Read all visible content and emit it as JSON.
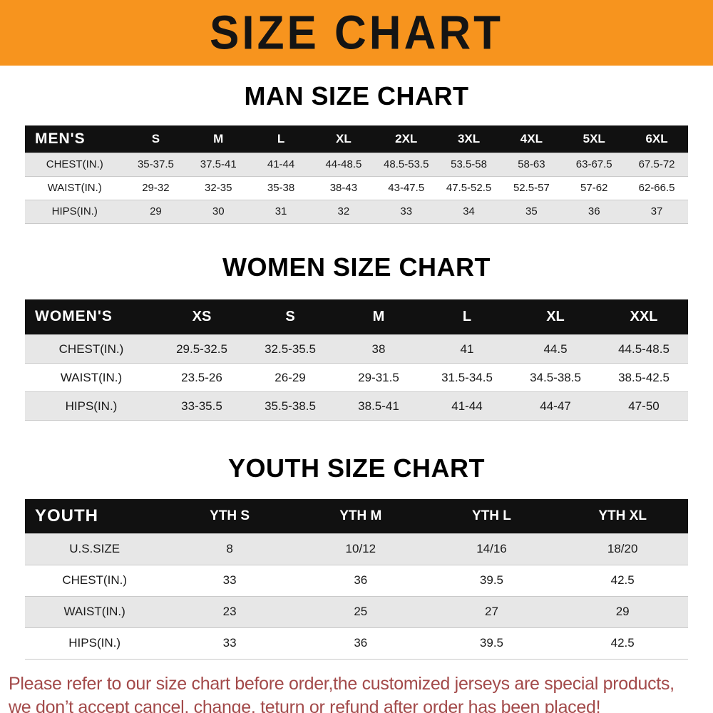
{
  "banner": {
    "title": "SIZE CHART",
    "bg_color": "#f7941e"
  },
  "sections": [
    {
      "heading": "MAN SIZE CHART",
      "table": {
        "header": [
          "MEN'S",
          "S",
          "M",
          "L",
          "XL",
          "2XL",
          "3XL",
          "4XL",
          "5XL",
          "6XL"
        ],
        "rows": [
          [
            "CHEST(IN.)",
            "35-37.5",
            "37.5-41",
            "41-44",
            "44-48.5",
            "48.5-53.5",
            "53.5-58",
            "58-63",
            "63-67.5",
            "67.5-72"
          ],
          [
            "WAIST(IN.)",
            "29-32",
            "32-35",
            "35-38",
            "38-43",
            "43-47.5",
            "47.5-52.5",
            "52.5-57",
            "57-62",
            "62-66.5"
          ],
          [
            "HIPS(IN.)",
            "29",
            "30",
            "31",
            "32",
            "33",
            "34",
            "35",
            "36",
            "37"
          ]
        ]
      }
    },
    {
      "heading": "WOMEN SIZE CHART",
      "table": {
        "header": [
          "WOMEN'S",
          "XS",
          "S",
          "M",
          "L",
          "XL",
          "XXL"
        ],
        "rows": [
          [
            "CHEST(IN.)",
            "29.5-32.5",
            "32.5-35.5",
            "38",
            "41",
            "44.5",
            "44.5-48.5"
          ],
          [
            "WAIST(IN.)",
            "23.5-26",
            "26-29",
            "29-31.5",
            "31.5-34.5",
            "34.5-38.5",
            "38.5-42.5"
          ],
          [
            "HIPS(IN.)",
            "33-35.5",
            "35.5-38.5",
            "38.5-41",
            "41-44",
            "44-47",
            "47-50"
          ]
        ]
      }
    },
    {
      "heading": "YOUTH SIZE CHART",
      "table": {
        "header": [
          "YOUTH",
          "YTH S",
          "YTH M",
          "YTH L",
          "YTH XL"
        ],
        "rows": [
          [
            "U.S.SIZE",
            "8",
            "10/12",
            "14/16",
            "18/20"
          ],
          [
            "CHEST(IN.)",
            "33",
            "36",
            "39.5",
            "42.5"
          ],
          [
            "WAIST(IN.)",
            "23",
            "25",
            "27",
            "29"
          ],
          [
            "HIPS(IN.)",
            "33",
            "36",
            "39.5",
            "42.5"
          ]
        ]
      }
    }
  ],
  "footer": {
    "lines": [
      "Please refer to our size chart before order,the customized jerseys are special products,",
      "we don’t accept cancel, change, teturn or refund after order has been placed!"
    ],
    "text_color": "#a34a4a"
  }
}
